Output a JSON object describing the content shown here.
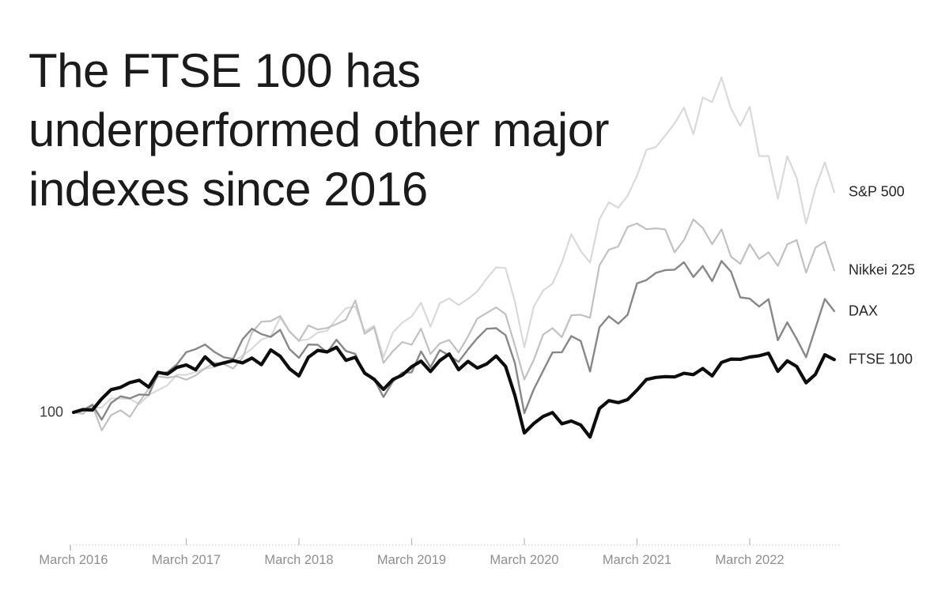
{
  "chart_data": {
    "type": "line",
    "title_lines": [
      "The FTSE 100 has",
      "underperformed other major",
      "indexes since 2016"
    ],
    "x_axis": {
      "tick_labels": [
        "March 2016",
        "March 2017",
        "March 2018",
        "March 2019",
        "March 2020",
        "March 2021",
        "March 2022"
      ],
      "tick_month_indexes": [
        0,
        12,
        24,
        36,
        48,
        60,
        72
      ],
      "unit": "month",
      "range_months": [
        0,
        81
      ]
    },
    "y_axis": {
      "ref_label": "100",
      "ref_value": 100,
      "ylim": [
        48,
        240
      ],
      "grid": false
    },
    "legend_position": "right-of-line-ends",
    "series": [
      {
        "label": "S&P 500",
        "color": "#d9d9d9",
        "width": 2.2,
        "values": [
          100,
          100.3,
          101.8,
          101.9,
          105.5,
          105.4,
          105.3,
          103.2,
          106.8,
          108.7,
          110.6,
          114.8,
          114.7,
          115.8,
          117.1,
          117.7,
          119.9,
          120.0,
          122.3,
          125.0,
          128.5,
          129.8,
          137.1,
          131.8,
          128.2,
          128.6,
          131.3,
          132.0,
          136.7,
          140.9,
          141.5,
          131.7,
          134.0,
          121.7,
          131.3,
          135.2,
          137.6,
          143.0,
          133.6,
          142.8,
          144.7,
          142.1,
          144.5,
          147.5,
          152.5,
          156.9,
          156.6,
          143.4,
          125.5,
          141.4,
          147.8,
          150.5,
          158.8,
          169.9,
          163.3,
          158.8,
          175.8,
          182.4,
          180.3,
          185.0,
          192.9,
          203.0,
          204.1,
          208.6,
          213.4,
          219.6,
          209.1,
          223.6,
          221.7,
          231.4,
          219.2,
          212.4,
          219.9,
          200.6,
          200.6,
          183.8,
          200.5,
          192.0,
          174.1,
          188.0,
          198.1,
          186.4
        ]
      },
      {
        "label": "Nikkei 225",
        "color": "#c1c1c1",
        "width": 2.2,
        "values": [
          100,
          99.4,
          102.8,
          92.9,
          98.9,
          100.8,
          98.2,
          104.0,
          109.2,
          114.1,
          113.6,
          114.1,
          112.8,
          114.5,
          117.3,
          119.5,
          118.9,
          117.2,
          121.5,
          131.3,
          135.6,
          135.8,
          137.8,
          131.7,
          128.0,
          134.1,
          132.5,
          133.1,
          134.6,
          136.4,
          143.9,
          130.8,
          133.4,
          119.4,
          124.0,
          127.6,
          126.5,
          132.8,
          122.9,
          127.0,
          128.4,
          123.5,
          129.8,
          136.8,
          139.0,
          141.2,
          138.5,
          126.2,
          112.9,
          120.5,
          130.5,
          133.0,
          129.5,
          138.1,
          138.3,
          137.1,
          157.7,
          163.8,
          165.1,
          172.8,
          174.1,
          171.9,
          172.2,
          171.8,
          162.8,
          167.6,
          175.7,
          172.4,
          166.0,
          171.8,
          161.1,
          158.3,
          166.0,
          160.2,
          162.8,
          157.5,
          165.9,
          167.6,
          154.8,
          164.6,
          166.9,
          155.7
        ]
      },
      {
        "label": "DAX",
        "color": "#878787",
        "width": 2.4,
        "values": [
          100,
          100.7,
          103.0,
          97.1,
          103.7,
          106.3,
          105.5,
          107.0,
          106.8,
          115.2,
          115.8,
          118.8,
          123.6,
          124.8,
          126.6,
          123.7,
          121.6,
          121.0,
          128.7,
          132.8,
          130.7,
          129.6,
          132.4,
          124.8,
          121.4,
          126.6,
          126.5,
          123.5,
          128.5,
          124.1,
          122.9,
          114.9,
          113.0,
          106.0,
          112.1,
          115.6,
          115.7,
          123.9,
          117.7,
          124.4,
          122.3,
          119.8,
          124.7,
          129.1,
          132.8,
          133.0,
          130.3,
          119.3,
          99.7,
          109.0,
          116.3,
          123.5,
          123.6,
          129.9,
          128.0,
          116.0,
          133.4,
          137.7,
          134.8,
          138.3,
          150.6,
          151.9,
          154.7,
          155.8,
          156.0,
          158.9,
          153.1,
          157.4,
          151.5,
          159.4,
          155.2,
          145.1,
          144.6,
          141.5,
          144.4,
          128.3,
          135.3,
          128.8,
          121.6,
          133.0,
          144.5,
          139.7
        ]
      },
      {
        "label": "FTSE 100",
        "color": "#0d0d0d",
        "width": 4.2,
        "values": [
          100,
          101.1,
          100.9,
          105.3,
          108.9,
          109.8,
          111.7,
          112.6,
          109.9,
          115.7,
          115.0,
          117.6,
          118.6,
          116.7,
          121.8,
          118.4,
          119.4,
          120.3,
          119.4,
          121.3,
          118.7,
          124.5,
          122.0,
          117.1,
          114.3,
          121.6,
          124.3,
          123.7,
          125.5,
          120.4,
          121.6,
          115.4,
          113.0,
          109.0,
          112.9,
          114.6,
          117.9,
          120.1,
          116.0,
          120.3,
          122.9,
          116.7,
          120.0,
          117.4,
          119.0,
          122.1,
          118.0,
          106.6,
          91.9,
          95.6,
          98.4,
          99.9,
          95.5,
          96.6,
          95.0,
          90.3,
          101.5,
          104.6,
          103.8,
          105.0,
          108.7,
          112.9,
          113.7,
          114.0,
          113.9,
          115.3,
          114.8,
          117.2,
          114.3,
          119.6,
          120.9,
          120.8,
          121.7,
          122.2,
          123.2,
          116.1,
          120.2,
          118.0,
          111.6,
          114.9,
          122.6,
          120.7
        ]
      }
    ],
    "style": {
      "axis_line_color": "#c6c6c6",
      "tick_color": "#b5b5b5",
      "tick_label_color": "#8e8e8e",
      "title_color": "#1b1b1b",
      "label_color": "#262626"
    }
  }
}
